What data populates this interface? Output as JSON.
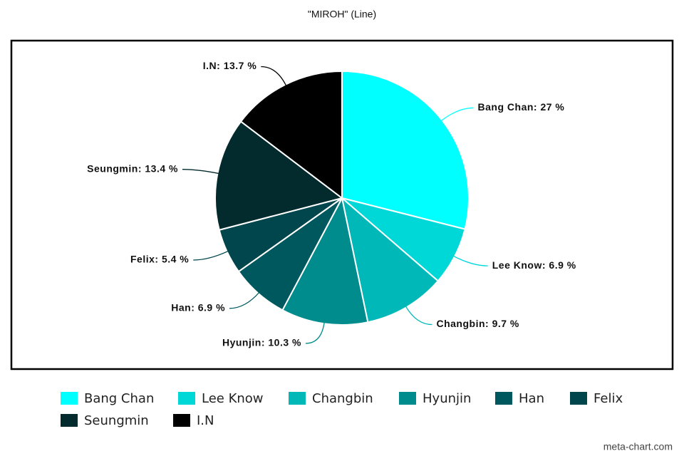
{
  "chart_data": {
    "type": "pie",
    "title": "\"MIROH\" (Line)",
    "categories": [
      "Bang Chan",
      "Lee Know",
      "Changbin",
      "Hyunjin",
      "Han",
      "Felix",
      "Seungmin",
      "I.N"
    ],
    "values": [
      27,
      6.9,
      9.7,
      10.3,
      6.9,
      5.4,
      13.4,
      13.7
    ],
    "value_labels": [
      "Bang Chan: 27 %",
      "Lee Know: 6.9 %",
      "Changbin: 9.7 %",
      "Hyunjin: 10.3 %",
      "Han: 6.9 %",
      "Felix: 5.4 %",
      "Seungmin: 13.4 %",
      "I.N: 13.7 %"
    ],
    "colors": [
      "#00ffff",
      "#00d8d8",
      "#00b8b8",
      "#008c8c",
      "#00585f",
      "#00464c",
      "#032a2d",
      "#000000"
    ],
    "credit": "meta-chart.com"
  }
}
